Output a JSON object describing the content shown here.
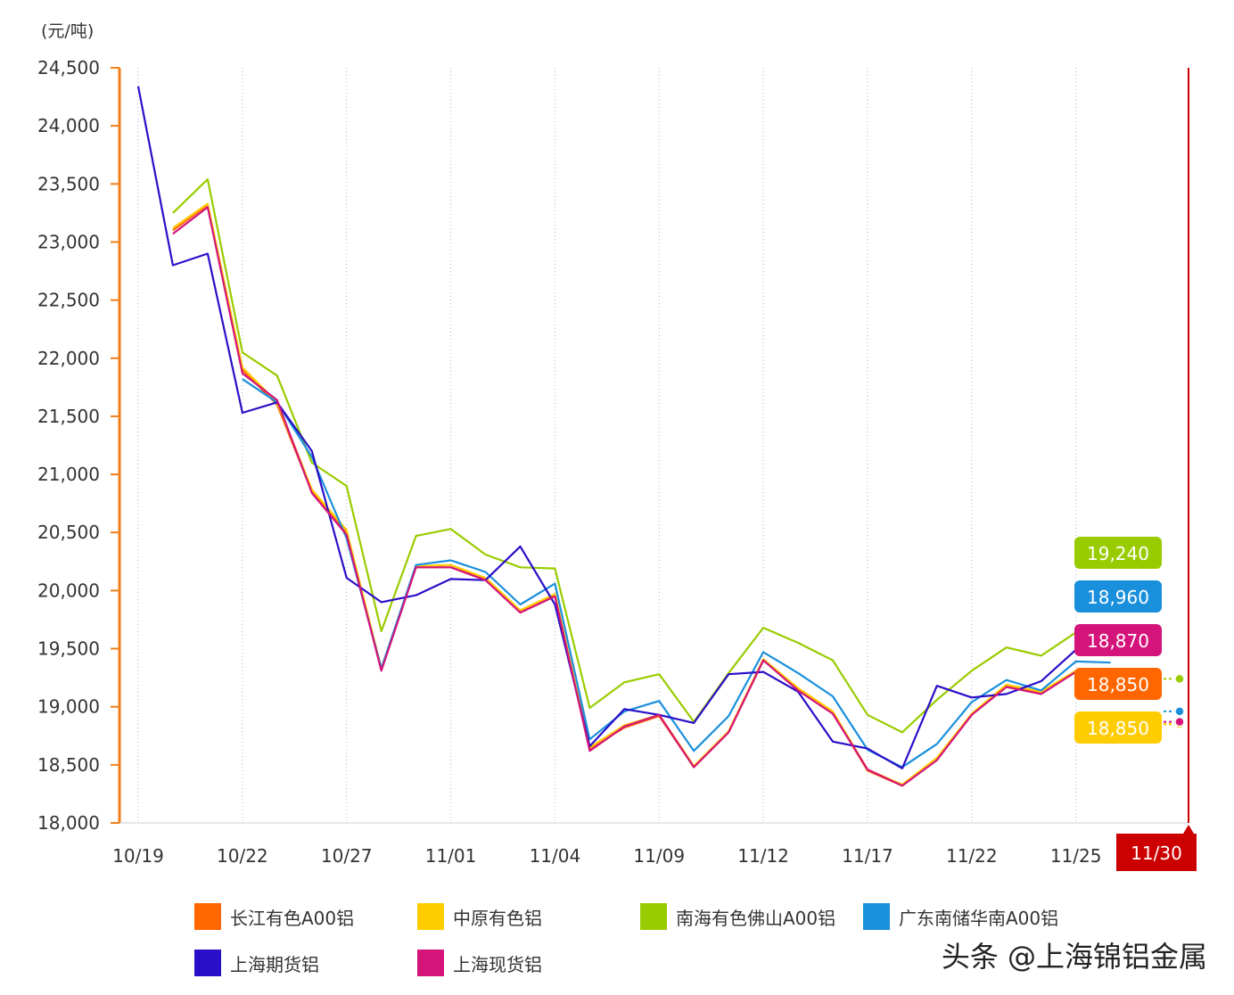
{
  "unit_label": "(元/吨)",
  "watermark": "头条 @上海锦铝金属",
  "chart_data": {
    "type": "line",
    "ylabel": "(元/吨)",
    "ylim": [
      18000,
      24500
    ],
    "yticks": [
      18000,
      18500,
      19000,
      19500,
      20000,
      20500,
      21000,
      21500,
      22000,
      22500,
      23000,
      23500,
      24000,
      24500
    ],
    "ytick_labels": [
      "18,000",
      "18,500",
      "19,000",
      "19,500",
      "20,000",
      "20,500",
      "21,000",
      "21,500",
      "22,000",
      "22,500",
      "23,000",
      "23,500",
      "24,000",
      "24,500"
    ],
    "xtick_labels": [
      "10/19",
      "10/22",
      "10/27",
      "11/01",
      "11/04",
      "11/09",
      "11/12",
      "11/17",
      "11/22",
      "11/25",
      "11/30"
    ],
    "x_count": 31,
    "xtick_indices": [
      0,
      3,
      6,
      9,
      12,
      15,
      18,
      21,
      24,
      27,
      30
    ],
    "cursor_label": "11/30",
    "cursor_index": 30,
    "grid": true,
    "legend_position": "bottom",
    "colors": {
      "axis": "#f07f1a",
      "cursor": "#cc0000",
      "grid": "#aab4d6"
    },
    "series": [
      {
        "name": "长江有色A00铝",
        "color": "#ff6600",
        "end_label": "18,850",
        "values": [
          null,
          23100,
          23320,
          21900,
          21600,
          20850,
          20500,
          19320,
          20200,
          20200,
          20100,
          19820,
          19960,
          18640,
          18820,
          18920,
          18480,
          18780,
          19400,
          19150,
          18950,
          18450,
          18320,
          18550,
          18930,
          19180,
          19120,
          19300,
          null,
          null,
          18850
        ]
      },
      {
        "name": "中原有色铝",
        "color": "#ffcc00",
        "end_label": "18,850",
        "values": [
          null,
          23120,
          23330,
          21920,
          21620,
          20870,
          20520,
          19330,
          20210,
          20220,
          20110,
          19830,
          19970,
          18650,
          18840,
          18930,
          18490,
          18790,
          19410,
          19160,
          18960,
          18460,
          18330,
          18560,
          18940,
          19190,
          19130,
          19310,
          null,
          null,
          18850
        ]
      },
      {
        "name": "南海有色佛山A00铝",
        "color": "#99cc00",
        "end_label": "19,240",
        "values": [
          null,
          23250,
          23540,
          22050,
          21850,
          21100,
          20900,
          19650,
          20470,
          20530,
          20310,
          20200,
          20190,
          18990,
          19210,
          19280,
          18870,
          19290,
          19680,
          19550,
          19400,
          18930,
          18780,
          19060,
          19310,
          19510,
          19440,
          19640,
          null,
          null,
          19240
        ]
      },
      {
        "name": "广东南储华南A00铝",
        "color": "#1a8fdc",
        "end_label": "18,960",
        "values": [
          null,
          null,
          null,
          21820,
          21620,
          21150,
          20450,
          19330,
          20220,
          20260,
          20160,
          19880,
          20060,
          18720,
          18960,
          19050,
          18620,
          18920,
          19470,
          19290,
          19090,
          18630,
          18480,
          18680,
          19040,
          19230,
          19140,
          19390,
          19380,
          null,
          18960
        ]
      },
      {
        "name": "上海期货铝",
        "color": "#2a0fc8",
        "end_label": "",
        "values": [
          24340,
          22800,
          22900,
          21530,
          21620,
          21200,
          20110,
          19900,
          19960,
          20100,
          20090,
          20380,
          19880,
          18660,
          18980,
          18930,
          18860,
          19280,
          19300,
          19130,
          18700,
          18640,
          18470,
          19180,
          19080,
          19110,
          19220,
          19490,
          null,
          null,
          null
        ]
      },
      {
        "name": "上海现货铝",
        "color": "#d4147a",
        "end_label": "18,870",
        "values": [
          null,
          23070,
          23300,
          21870,
          21640,
          20840,
          20480,
          19310,
          20200,
          20200,
          20090,
          19810,
          19950,
          18620,
          18830,
          18930,
          18480,
          18780,
          19400,
          19140,
          18940,
          18460,
          18320,
          18540,
          18930,
          19170,
          19110,
          19300,
          null,
          null,
          18870
        ]
      }
    ]
  }
}
